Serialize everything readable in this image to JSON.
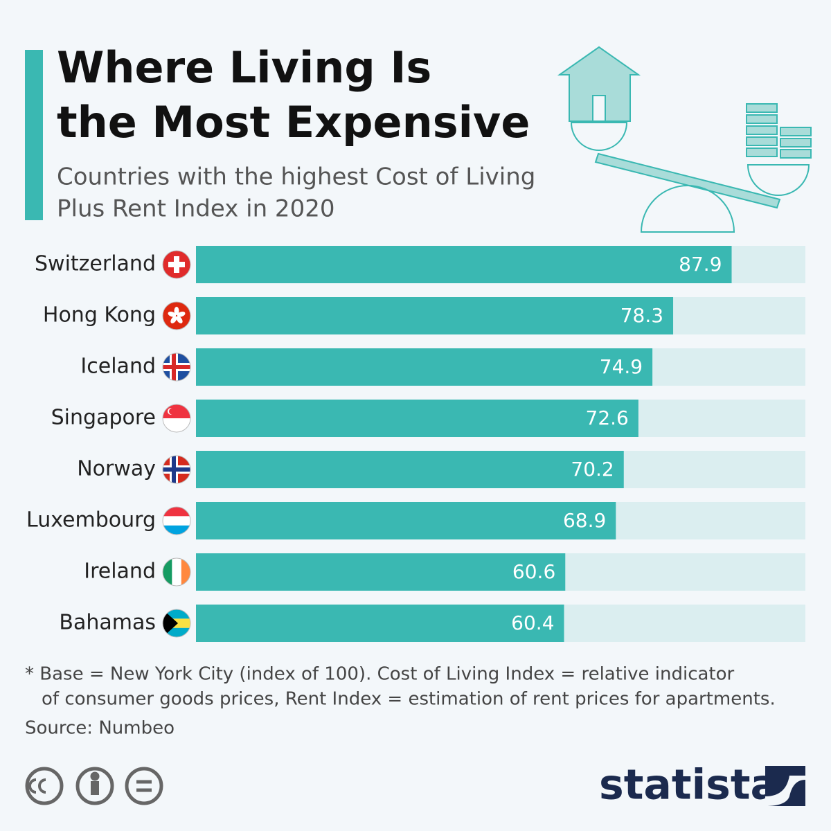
{
  "chart_data": {
    "type": "bar",
    "orientation": "horizontal",
    "title": [
      "Where Living Is",
      "the Most Expensive"
    ],
    "subtitle": [
      "Countries with the highest Cost of Living",
      "Plus Rent Index in 2020"
    ],
    "categories": [
      "Switzerland",
      "Hong Kong",
      "Iceland",
      "Singapore",
      "Norway",
      "Luxembourg",
      "Ireland",
      "Bahamas"
    ],
    "values": [
      87.9,
      78.3,
      74.9,
      72.6,
      70.2,
      68.9,
      60.6,
      60.4
    ],
    "color": "#3ab8b2",
    "track_color": "#dbeef0",
    "xlim": [
      0,
      100
    ],
    "footnote": [
      "* Base = New York City (index of 100). Cost of Living Index = relative indicator",
      "of consumer goods prices, Rent Index = estimation of rent prices for apartments."
    ],
    "source": "Source: Numbeo",
    "brand": "statista"
  }
}
